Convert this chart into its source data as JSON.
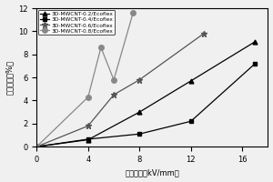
{
  "series": [
    {
      "label": "3D-MWCNT-0.2/Ecoflex",
      "x": [
        0,
        4,
        8,
        12,
        17
      ],
      "y": [
        0,
        0.6,
        3.0,
        5.7,
        9.1
      ],
      "marker": "^",
      "color": "#000000",
      "linestyle": "-",
      "markersize": 3.5
    },
    {
      "label": "3D-MWCNT-0.4/Ecoflex",
      "x": [
        0,
        4,
        8,
        12,
        17
      ],
      "y": [
        0,
        0.65,
        1.1,
        2.2,
        7.2
      ],
      "marker": "s",
      "color": "#000000",
      "linestyle": "-",
      "markersize": 3.0
    },
    {
      "label": "3D-MWCNT-0.6/Ecoflex",
      "x": [
        0,
        4,
        6,
        8,
        13
      ],
      "y": [
        0,
        1.8,
        4.5,
        5.8,
        9.8
      ],
      "marker": "*",
      "color": "#555555",
      "linestyle": "-",
      "markersize": 5.0
    },
    {
      "label": "3D-MWCNT-0.8/Ecoflex",
      "x": [
        0,
        4,
        5,
        6,
        7.5
      ],
      "y": [
        0,
        4.3,
        8.6,
        5.8,
        11.6
      ],
      "marker": "o",
      "color": "#888888",
      "linestyle": "-",
      "markersize": 4.0
    }
  ],
  "xlabel": "电场强度（kV/mm）",
  "ylabel": "电致应变（%）",
  "xlim": [
    0,
    18
  ],
  "ylim": [
    0,
    12
  ],
  "xticks": [
    0,
    4,
    8,
    12,
    16
  ],
  "yticks": [
    0,
    2,
    4,
    6,
    8,
    10,
    12
  ],
  "background_color": "#f0f0f0",
  "legend_fontsize": 4.2,
  "axis_fontsize": 6,
  "tick_fontsize": 6
}
